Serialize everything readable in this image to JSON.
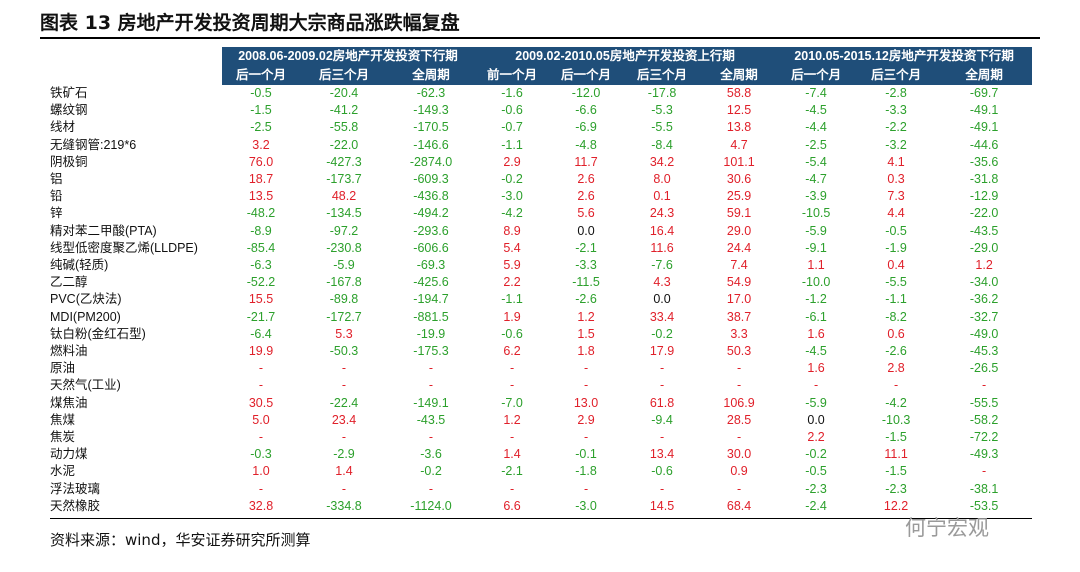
{
  "header": {
    "title": "图表 13 房地产开发投资周期大宗商品涨跌幅复盘"
  },
  "table": {
    "groups": [
      "2008.06-2009.02房地产开发投资下行期",
      "2009.02-2010.05房地产开发投资上行期",
      "2010.05-2015.12房地产开发投资下行期"
    ],
    "group_spans": [
      3,
      4,
      3
    ],
    "columns": [
      "后一个月",
      "后三个月",
      "全周期",
      "前一个月",
      "后一个月",
      "后三个月",
      "全周期",
      "后一个月",
      "后三个月",
      "全周期"
    ],
    "rows": [
      [
        "铁矿石",
        "-0.5",
        "-20.4",
        "-62.3",
        "-1.6",
        "-12.0",
        "-17.8",
        "58.8",
        "-7.4",
        "-2.8",
        "-69.7"
      ],
      [
        "螺纹钢",
        "-1.5",
        "-41.2",
        "-149.3",
        "-0.6",
        "-6.6",
        "-5.3",
        "12.5",
        "-4.5",
        "-3.3",
        "-49.1"
      ],
      [
        "线材",
        "-2.5",
        "-55.8",
        "-170.5",
        "-0.7",
        "-6.9",
        "-5.5",
        "13.8",
        "-4.4",
        "-2.2",
        "-49.1"
      ],
      [
        "无缝钢管:219*6",
        "3.2",
        "-22.0",
        "-146.6",
        "-1.1",
        "-4.8",
        "-8.4",
        "4.7",
        "-2.5",
        "-3.2",
        "-44.6"
      ],
      [
        "阴极铜",
        "76.0",
        "-427.3",
        "-2874.0",
        "2.9",
        "11.7",
        "34.2",
        "101.1",
        "-5.4",
        "4.1",
        "-35.6"
      ],
      [
        "铝",
        "18.7",
        "-173.7",
        "-609.3",
        "-0.2",
        "2.6",
        "8.0",
        "30.6",
        "-4.7",
        "0.3",
        "-31.8"
      ],
      [
        "铅",
        "13.5",
        "48.2",
        "-436.8",
        "-3.0",
        "2.6",
        "0.1",
        "25.9",
        "-3.9",
        "7.3",
        "-12.9"
      ],
      [
        "锌",
        "-48.2",
        "-134.5",
        "-494.2",
        "-4.2",
        "5.6",
        "24.3",
        "59.1",
        "-10.5",
        "4.4",
        "-22.0"
      ],
      [
        "精对苯二甲酸(PTA)",
        "-8.9",
        "-97.2",
        "-293.6",
        "8.9",
        "0.0",
        "16.4",
        "29.0",
        "-5.9",
        "-0.5",
        "-43.5"
      ],
      [
        "线型低密度聚乙烯(LLDPE)",
        "-85.4",
        "-230.8",
        "-606.6",
        "5.4",
        "-2.1",
        "11.6",
        "24.4",
        "-9.1",
        "-1.9",
        "-29.0"
      ],
      [
        "纯碱(轻质)",
        "-6.3",
        "-5.9",
        "-69.3",
        "5.9",
        "-3.3",
        "-7.6",
        "7.4",
        "1.1",
        "0.4",
        "1.2"
      ],
      [
        "乙二醇",
        "-52.2",
        "-167.8",
        "-425.6",
        "2.2",
        "-11.5",
        "4.3",
        "54.9",
        "-10.0",
        "-5.5",
        "-34.0"
      ],
      [
        "PVC(乙炔法)",
        "15.5",
        "-89.8",
        "-194.7",
        "-1.1",
        "-2.6",
        "0.0",
        "17.0",
        "-1.2",
        "-1.1",
        "-36.2"
      ],
      [
        "MDI(PM200)",
        "-21.7",
        "-172.7",
        "-881.5",
        "1.9",
        "1.2",
        "33.4",
        "38.7",
        "-6.1",
        "-8.2",
        "-32.7"
      ],
      [
        "钛白粉(金红石型)",
        "-6.4",
        "5.3",
        "-19.9",
        "-0.6",
        "1.5",
        "-0.2",
        "3.3",
        "1.6",
        "0.6",
        "-49.0"
      ],
      [
        "燃料油",
        "19.9",
        "-50.3",
        "-175.3",
        "6.2",
        "1.8",
        "17.9",
        "50.3",
        "-4.5",
        "-2.6",
        "-45.3"
      ],
      [
        "原油",
        "-",
        "-",
        "-",
        "-",
        "-",
        "-",
        "-",
        "1.6",
        "2.8",
        "-26.5"
      ],
      [
        "天然气(工业)",
        "-",
        "-",
        "-",
        "-",
        "-",
        "-",
        "-",
        "-",
        "-",
        "-"
      ],
      [
        "煤焦油",
        "30.5",
        "-22.4",
        "-149.1",
        "-7.0",
        "13.0",
        "61.8",
        "106.9",
        "-5.9",
        "-4.2",
        "-55.5"
      ],
      [
        "焦煤",
        "5.0",
        "23.4",
        "-43.5",
        "1.2",
        "2.9",
        "-9.4",
        "28.5",
        "0.0",
        "-10.3",
        "-58.2"
      ],
      [
        "焦炭",
        "-",
        "-",
        "-",
        "-",
        "-",
        "-",
        "-",
        "2.2",
        "-1.5",
        "-72.2"
      ],
      [
        "动力煤",
        "-0.3",
        "-2.9",
        "-3.6",
        "1.4",
        "-0.1",
        "13.4",
        "30.0",
        "-0.2",
        "11.1",
        "-49.3"
      ],
      [
        "水泥",
        "1.0",
        "1.4",
        "-0.2",
        "-2.1",
        "-1.8",
        "-0.6",
        "0.9",
        "-0.5",
        "-1.5",
        "-"
      ],
      [
        "浮法玻璃",
        "-",
        "-",
        "-",
        "-",
        "-",
        "-",
        "-",
        "-2.3",
        "-2.3",
        "-38.1"
      ],
      [
        "天然橡胶",
        "32.8",
        "-334.8",
        "-1124.0",
        "6.6",
        "-3.0",
        "14.5",
        "68.4",
        "-2.4",
        "12.2",
        "-53.5"
      ]
    ]
  },
  "footer": {
    "source": "资料来源：wind，华安证券研究所测算",
    "watermark": "何宁宏观"
  }
}
